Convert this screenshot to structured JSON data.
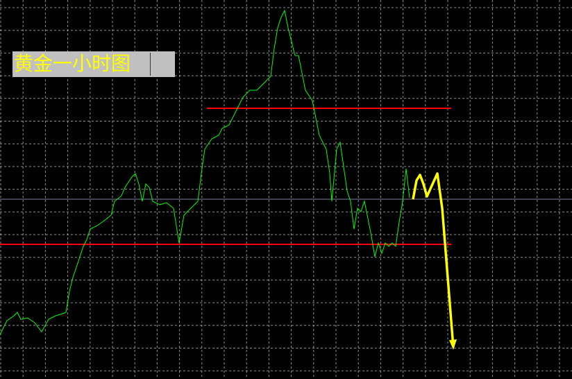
{
  "chart_data": {
    "type": "line",
    "title": "黄金一小时图",
    "xlabel": "",
    "ylabel": "",
    "grid": true,
    "colors": {
      "background": "#000000",
      "grid": "#c0c0c0",
      "price": "#00ff00",
      "forecast": "#ffff00",
      "levels": "#ff0000",
      "current": "#8080a0",
      "title_bg": "#c0c0c0",
      "title_text": "#ffff00"
    },
    "series": [
      {
        "role": "price",
        "points": [
          [
            0,
            6.4
          ],
          [
            2,
            8.4
          ],
          [
            4,
            9.1
          ],
          [
            5,
            9.6
          ],
          [
            6,
            8.6
          ],
          [
            8,
            8.8
          ],
          [
            10,
            8.1
          ],
          [
            12,
            6.8
          ],
          [
            14,
            8.6
          ],
          [
            16,
            9.1
          ],
          [
            18,
            9.4
          ],
          [
            19,
            9.6
          ],
          [
            20,
            12.6
          ],
          [
            21,
            14.6
          ],
          [
            22,
            16.1
          ],
          [
            23,
            17.6
          ],
          [
            24,
            19.1
          ],
          [
            25,
            20.1
          ],
          [
            26,
            21.6
          ],
          [
            28,
            22.1
          ],
          [
            30,
            22.8
          ],
          [
            32,
            23.6
          ],
          [
            33,
            25.6
          ],
          [
            35,
            26.4
          ],
          [
            36,
            27.6
          ],
          [
            38,
            29.1
          ],
          [
            39,
            29.6
          ],
          [
            40,
            28.1
          ],
          [
            41,
            25.6
          ],
          [
            42,
            28.1
          ],
          [
            43,
            27.6
          ],
          [
            44,
            25.6
          ],
          [
            46,
            25.1
          ],
          [
            48,
            25.4
          ],
          [
            50,
            24.6
          ],
          [
            51.6,
            19.6
          ],
          [
            53,
            23.6
          ],
          [
            55,
            24.6
          ],
          [
            57,
            25.6
          ],
          [
            58,
            29.6
          ],
          [
            59,
            33.1
          ],
          [
            61,
            34.6
          ],
          [
            63,
            35.1
          ],
          [
            64,
            36.1
          ],
          [
            66,
            36.6
          ],
          [
            68,
            38.6
          ],
          [
            70,
            40.6
          ],
          [
            72,
            41.6
          ],
          [
            74,
            41.6
          ],
          [
            76,
            42.6
          ],
          [
            78,
            43.6
          ],
          [
            79,
            47.6
          ],
          [
            80,
            50.6
          ],
          [
            81,
            52.1
          ],
          [
            82,
            53.1
          ],
          [
            83,
            50.6
          ],
          [
            84,
            48.6
          ],
          [
            85,
            46.6
          ],
          [
            86,
            46.6
          ],
          [
            88,
            41.6
          ],
          [
            90,
            40.1
          ],
          [
            91,
            37.6
          ],
          [
            92,
            35.1
          ],
          [
            93,
            34.1
          ],
          [
            94,
            33.1
          ],
          [
            95,
            29.6
          ],
          [
            95.6,
            25.6
          ],
          [
            97,
            33.1
          ],
          [
            98,
            34.1
          ],
          [
            99,
            30.6
          ],
          [
            100,
            27.1
          ],
          [
            101,
            25.6
          ],
          [
            102,
            21.6
          ],
          [
            103,
            24.6
          ],
          [
            104,
            24.1
          ],
          [
            105,
            25.6
          ],
          [
            106,
            23.1
          ],
          [
            107,
            20.6
          ],
          [
            108,
            17.6
          ],
          [
            109,
            19.6
          ],
          [
            110,
            18.1
          ],
          [
            111,
            19.6
          ],
          [
            112,
            19.1
          ],
          [
            113,
            19.6
          ],
          [
            114,
            19.1
          ],
          [
            115,
            22.6
          ],
          [
            116,
            25.6
          ],
          [
            117,
            30.3
          ],
          [
            118,
            26.1
          ]
        ]
      },
      {
        "role": "forecast-arrow",
        "points": [
          [
            119,
            25.9
          ],
          [
            120,
            28.6
          ],
          [
            121,
            29.4
          ],
          [
            122,
            28.1
          ],
          [
            123,
            26.3
          ],
          [
            124,
            27.4
          ],
          [
            126,
            29.6
          ],
          [
            127.4,
            24.6
          ],
          [
            129,
            14.6
          ],
          [
            130.6,
            4.6
          ]
        ]
      }
    ],
    "levels": [
      {
        "role": "resistance",
        "value": 39.0,
        "from": 59.6,
        "to": 130
      },
      {
        "role": "support",
        "value": 19.4,
        "from": 0,
        "to": 130
      },
      {
        "role": "current-price",
        "value": 25.9,
        "from": 0,
        "to": 165
      }
    ]
  }
}
